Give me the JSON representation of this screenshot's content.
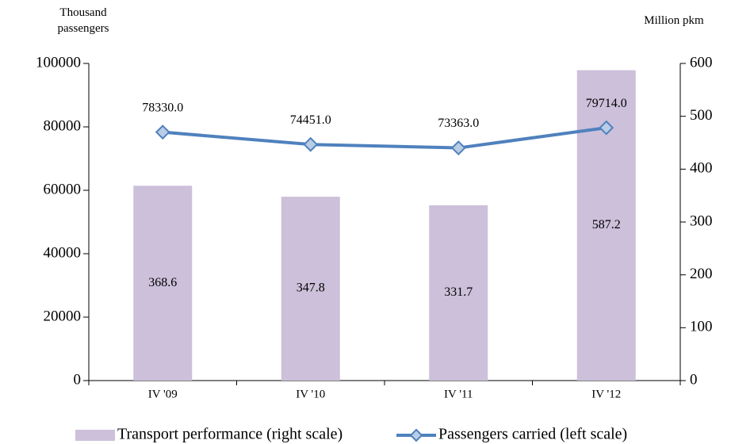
{
  "chart_data": {
    "type": "combo",
    "y_axis_label": "Thousand passengers",
    "y2_axis_label": "Million pkm",
    "categories": [
      "IV '09",
      "IV '10",
      "IV '11",
      "IV '12"
    ],
    "series": [
      {
        "name": "Transport performance (right scale)",
        "type": "bar",
        "axis": "y2",
        "color": "#ccc0da",
        "values": [
          368.6,
          347.8,
          331.7,
          587.2
        ]
      },
      {
        "name": "Passengers carried (left scale)",
        "type": "line",
        "axis": "y",
        "color": "#4f81bd",
        "marker_color": "#b9cde5",
        "values": [
          78330,
          74451,
          73363,
          79714
        ],
        "value_labels": [
          "78330.0",
          "74451.0",
          "73363.0",
          "79714.0"
        ]
      }
    ],
    "ylim": [
      0,
      100000
    ],
    "yticks": [
      0,
      20000,
      40000,
      60000,
      80000,
      100000
    ],
    "y2lim": [
      0,
      600
    ],
    "y2ticks": [
      0,
      100,
      200,
      300,
      400,
      500,
      600
    ],
    "grid": false,
    "legend": "bottom"
  }
}
